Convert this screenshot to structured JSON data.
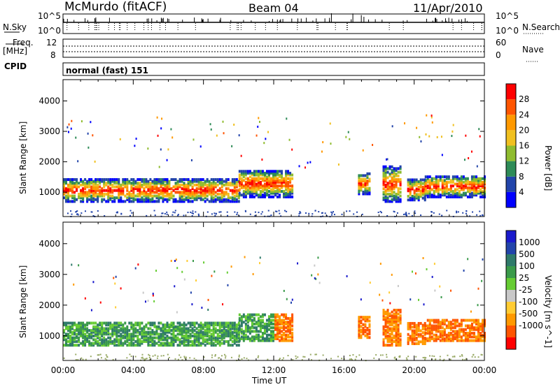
{
  "header": {
    "station": "McMurdo (fitACF)",
    "beam": "Beam 04",
    "date": "11/Apr/2010"
  },
  "strip_labels": {
    "nsky": "N.Sky",
    "nsearch": "N.Search",
    "freq": "Freq.",
    "freq_unit": "[MHz]",
    "nave": "Nave",
    "cpid": "CPID",
    "cpid_value": "normal (fast) 151",
    "nsky_top": "10^5",
    "nsky_bottom": "10^0",
    "nsearch_top": "10^5",
    "nsearch_bottom": "10^0",
    "freq_top": "12",
    "freq_bottom": "8",
    "nave_top": "60",
    "nave_bottom": "0"
  },
  "colors": {
    "power_scale": [
      "#0000ff",
      "#2244aa",
      "#2e8b57",
      "#8fbc2f",
      "#f0c020",
      "#ff9900",
      "#ff5500",
      "#ff0000"
    ],
    "velocity_scale": [
      "#ff0000",
      "#ff5500",
      "#ff9900",
      "#ffcc33",
      "#c8c8c8",
      "#66cc33",
      "#3a9a4a",
      "#2f7a6a",
      "#2244aa",
      "#1a1acc"
    ]
  },
  "chart_data": [
    {
      "type": "heatmap",
      "title": "",
      "ylabel": "Slant Range [km]",
      "xlabel": "",
      "x_ticks": [
        "00:00",
        "04:00",
        "08:00",
        "12:00",
        "16:00",
        "20:00",
        "00:00"
      ],
      "y_ticks": [
        "1000",
        "2000",
        "3000",
        "4000"
      ],
      "ylim": [
        200,
        4700
      ],
      "xlim_hours": [
        0,
        24
      ],
      "colorbar_label": "Power [dB]",
      "colorbar_ticks": [
        "4",
        "8",
        "12",
        "16",
        "20",
        "24",
        "28"
      ],
      "colorbar_range": [
        0,
        32
      ]
    },
    {
      "type": "heatmap",
      "title": "",
      "ylabel": "Slant Range [km]",
      "xlabel": "Time UT",
      "x_ticks": [
        "00:00",
        "04:00",
        "08:00",
        "12:00",
        "16:00",
        "20:00",
        "00:00"
      ],
      "y_ticks": [
        "1000",
        "2000",
        "3000",
        "4000"
      ],
      "ylim": [
        200,
        4700
      ],
      "xlim_hours": [
        0,
        24
      ],
      "colorbar_label": "Velocity [m s^-1]",
      "colorbar_ticks": [
        "1000",
        "500",
        "100",
        "25",
        "-25",
        "-100",
        "-500",
        "-1000"
      ]
    }
  ]
}
